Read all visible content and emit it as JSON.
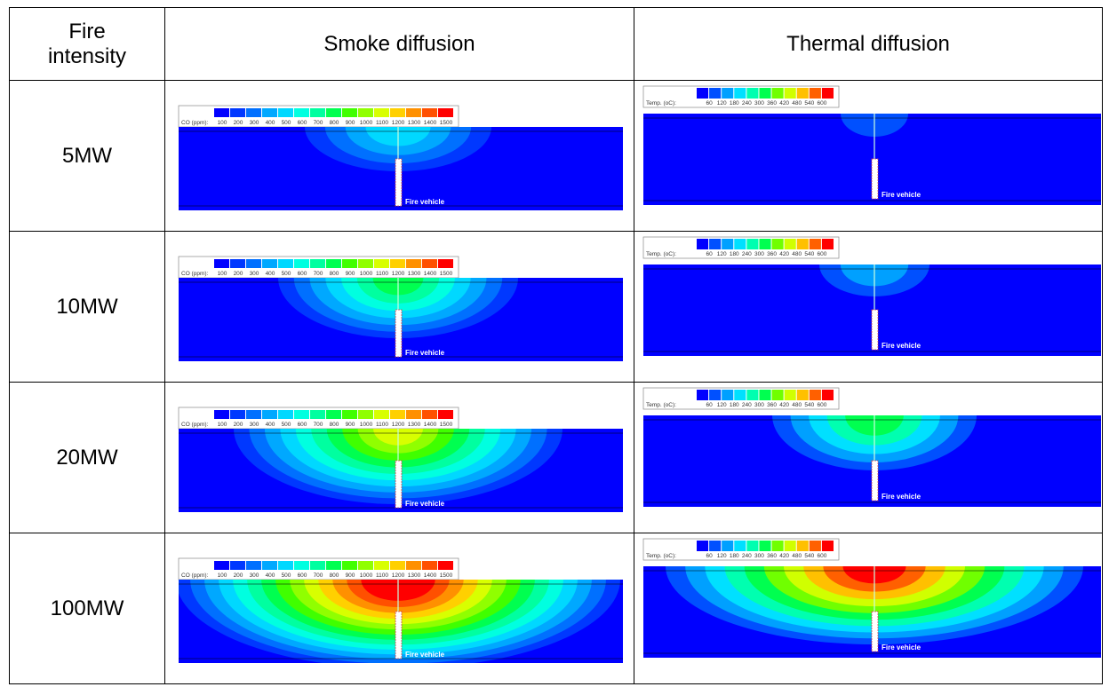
{
  "header": {
    "intensity": "Fire intensity",
    "smoke": "Smoke diffusion",
    "thermal": "Thermal diffusion"
  },
  "rows": [
    {
      "intensity": "5MW"
    },
    {
      "intensity": "10MW"
    },
    {
      "intensity": "20MW"
    },
    {
      "intensity": "100MW"
    }
  ],
  "smoke_legend": {
    "label": "CO (ppm):",
    "ticks": [
      100,
      200,
      300,
      400,
      500,
      600,
      700,
      800,
      900,
      1000,
      1100,
      1200,
      1300,
      1400,
      1500
    ]
  },
  "thermal_legend": {
    "label": "Temp. (oC):",
    "ticks": [
      60,
      120,
      180,
      240,
      300,
      360,
      420,
      480,
      540,
      600
    ]
  },
  "vehicle_label": "Fire vehicle"
}
